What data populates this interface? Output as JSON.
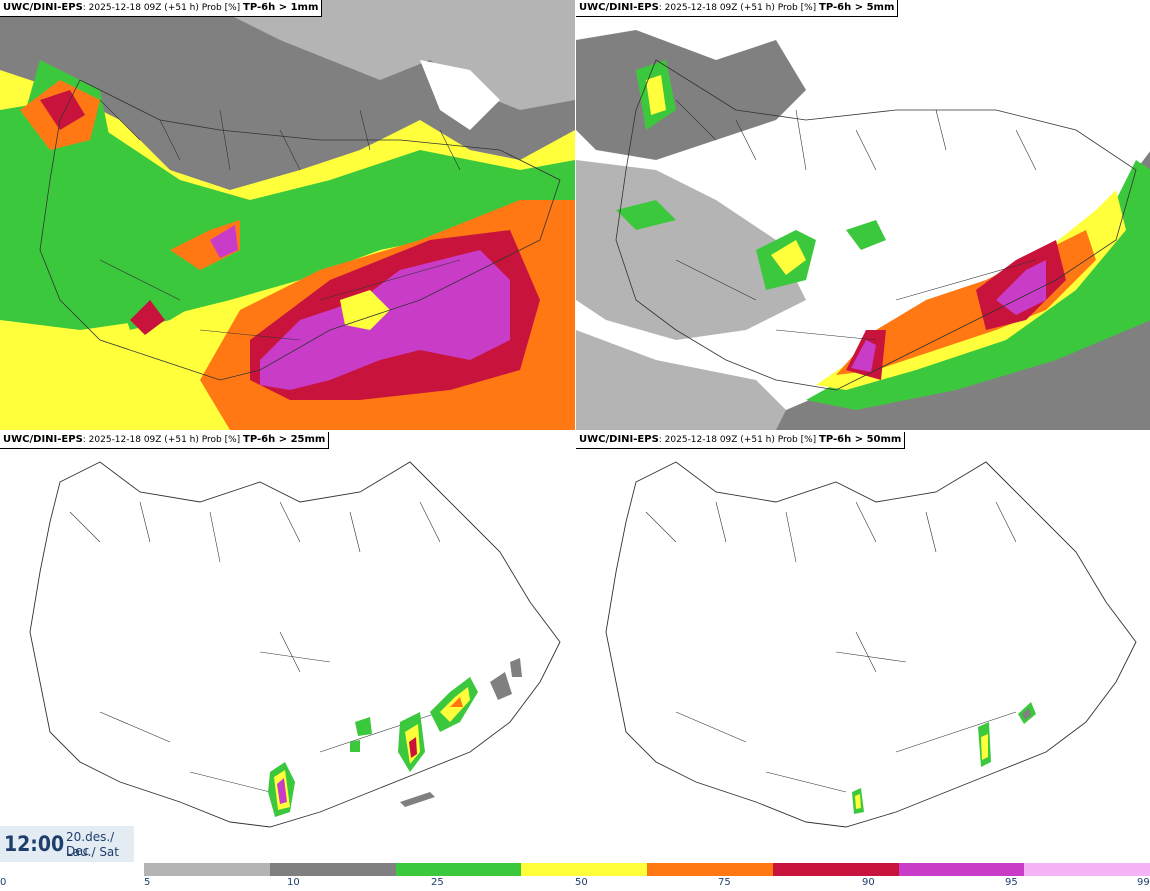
{
  "panels": [
    {
      "model": "UWC/DINI-EPS",
      "run": ": 2025-12-18 09Z (+51 h) Prob [%]",
      "variable": "TP-6h > 1mm"
    },
    {
      "model": "UWC/DINI-EPS",
      "run": ": 2025-12-18 09Z (+51 h) Prob [%]",
      "variable": "TP-6h > 5mm"
    },
    {
      "model": "UWC/DINI-EPS",
      "run": ": 2025-12-18 09Z (+51 h) Prob [%]",
      "variable": "TP-6h > 25mm"
    },
    {
      "model": "UWC/DINI-EPS",
      "run": ": 2025-12-18 09Z (+51 h) Prob [%]",
      "variable": "TP-6h > 50mm"
    }
  ],
  "valid_time": {
    "time": "12:00",
    "date": "20.des./ Dec",
    "day": "Lau./ Sat"
  },
  "legend": {
    "ticks": [
      "0",
      "5",
      "10",
      "25",
      "50",
      "75",
      "90",
      "95",
      "99"
    ],
    "colors": [
      "#b4b4b4",
      "#808080",
      "#3cc83c",
      "#ffff3c",
      "#ff7814",
      "#c8143c",
      "#c83cc8",
      "#f5b4f5"
    ]
  }
}
